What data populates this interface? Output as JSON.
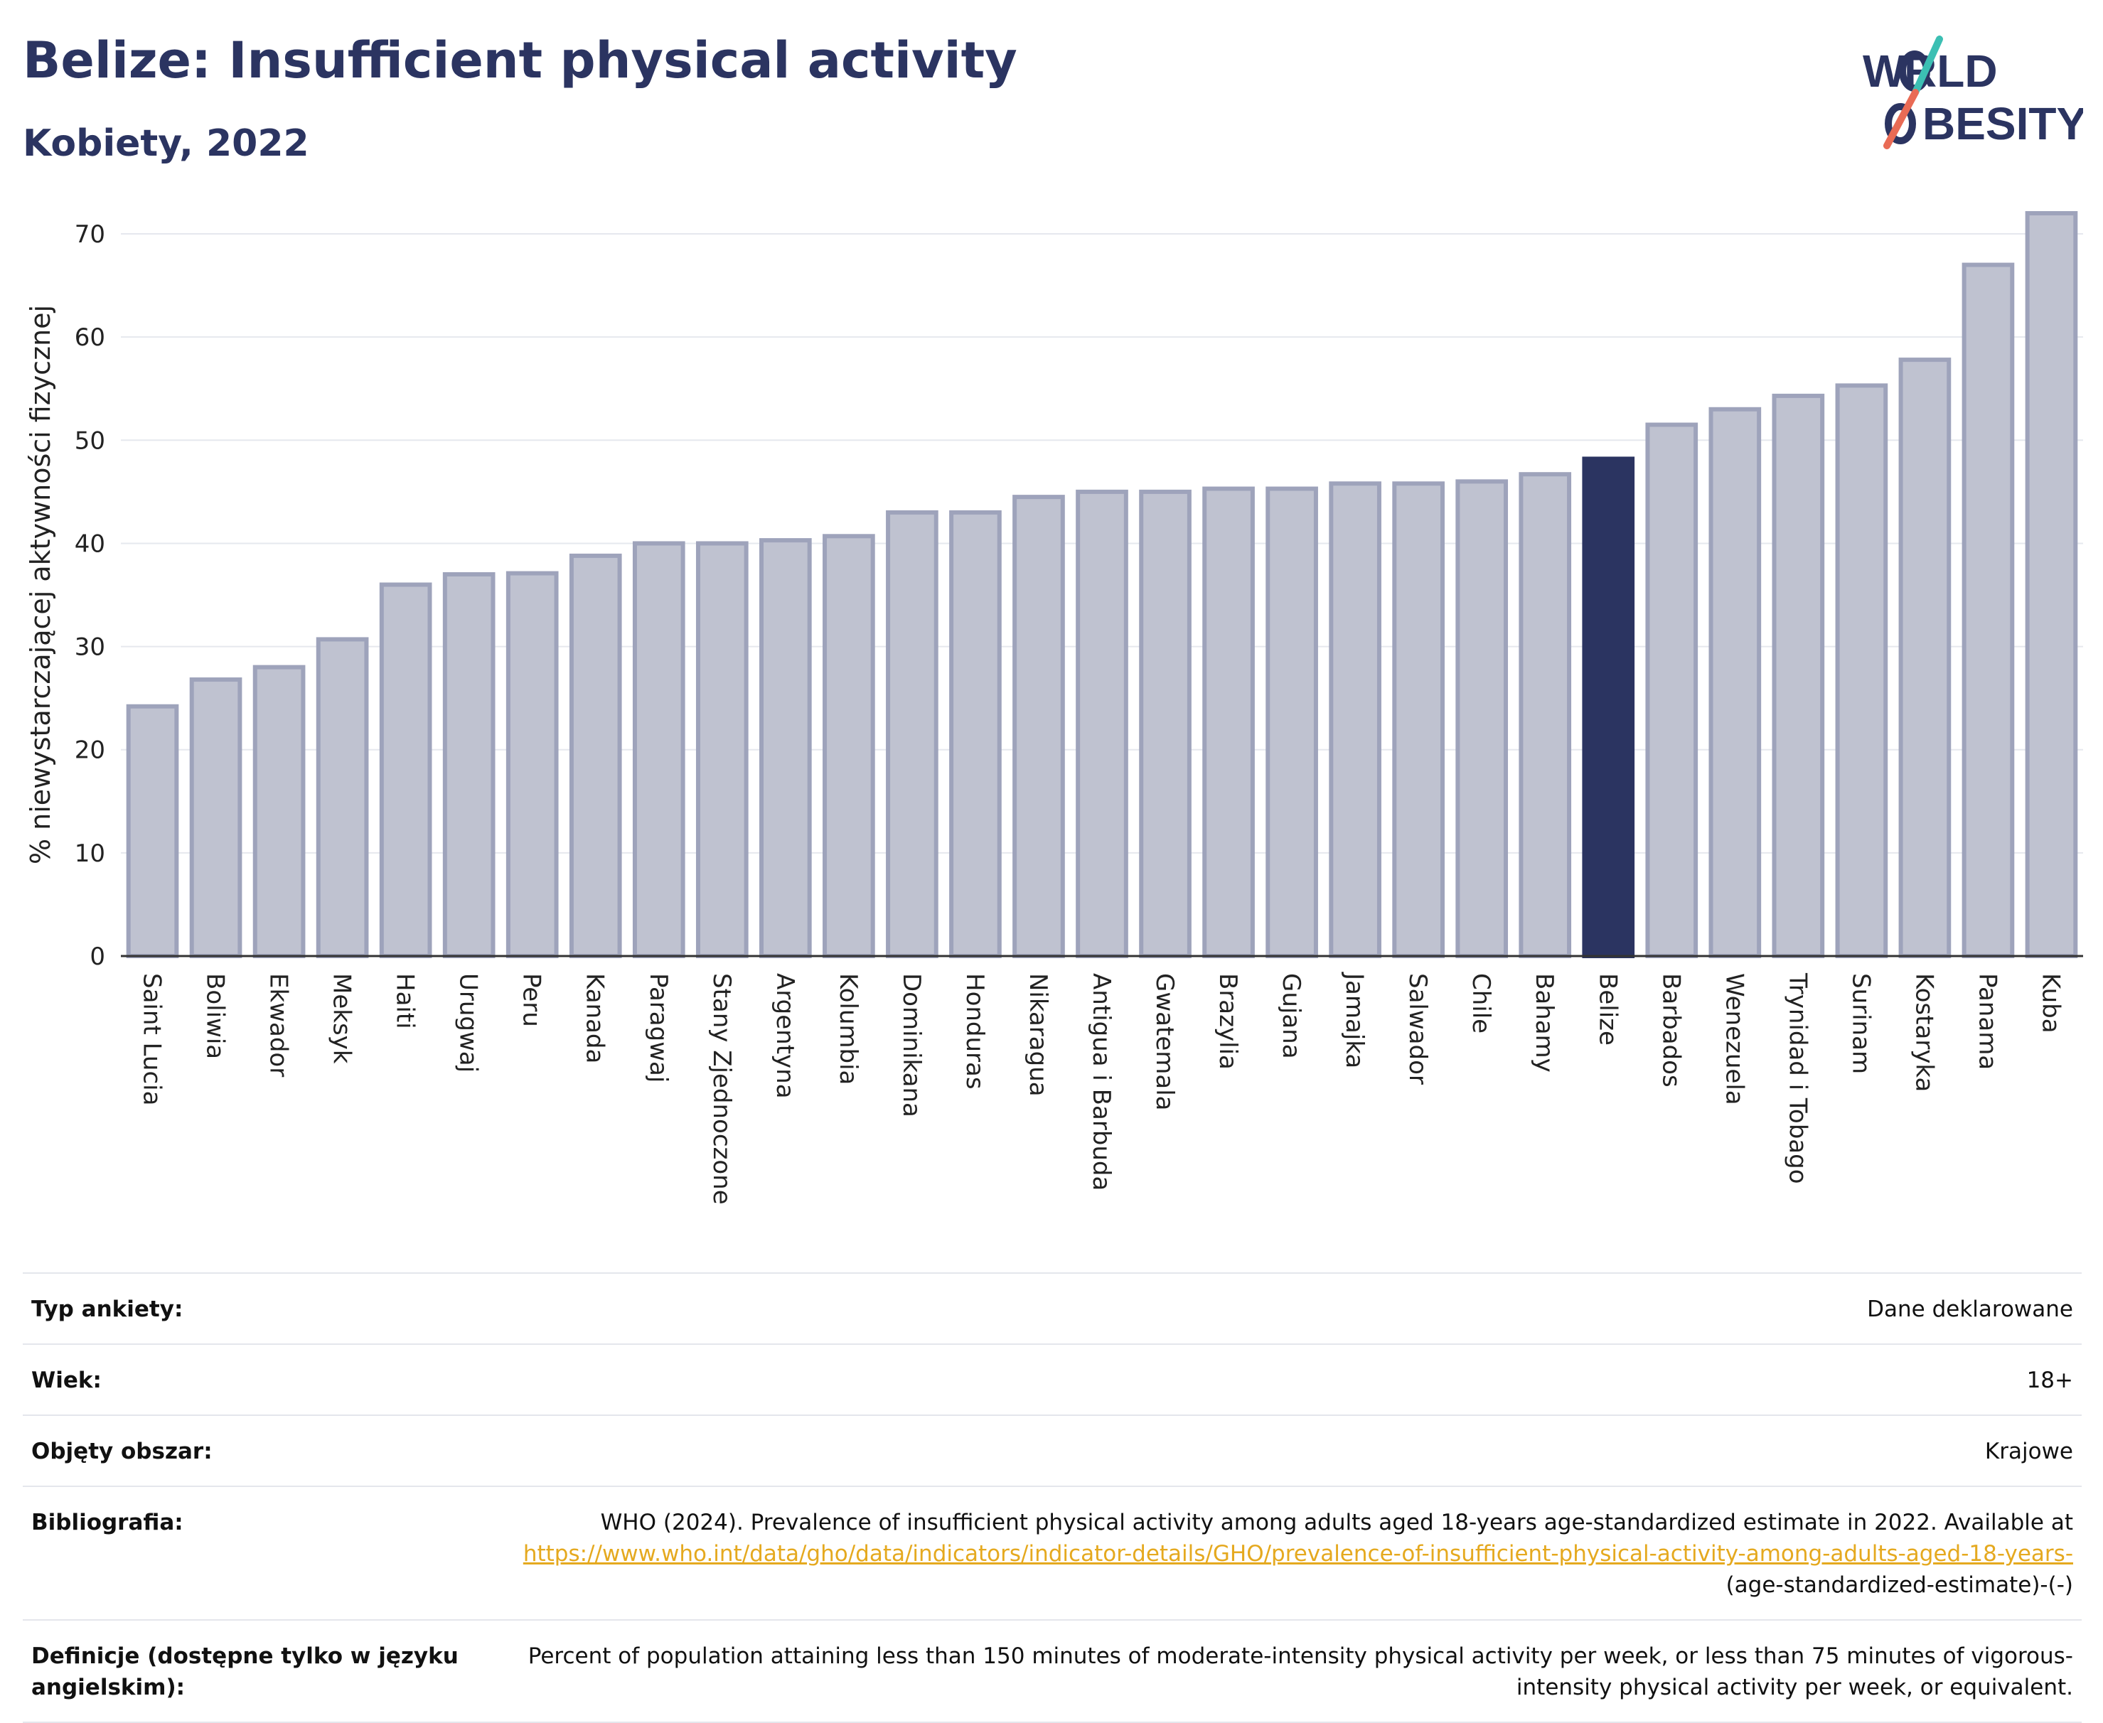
{
  "header": {
    "title": "Belize: Insufficient physical activity",
    "subtitle": "Kobiety, 2022"
  },
  "logo": {
    "line1": "W",
    "line1b": "RLD",
    "line2": "BESITY",
    "accent_teal": "#3cbfb3",
    "accent_coral": "#e96b55"
  },
  "colors": {
    "bar": "#bfc2d0",
    "bar_border": "#9ea3bb",
    "highlight": "#2b3461",
    "grid": "#e6e8ee",
    "axis": "#333333"
  },
  "chart_data": {
    "type": "bar",
    "ylabel": "% niewystarczającej aktywności fizycznej",
    "ylim": [
      0,
      72
    ],
    "yticks": [
      0,
      10,
      20,
      30,
      40,
      50,
      60,
      70
    ],
    "highlight": "Belize",
    "categories": [
      "Saint Lucia",
      "Boliwia",
      "Ekwador",
      "Meksyk",
      "Haiti",
      "Urugwaj",
      "Peru",
      "Kanada",
      "Paragwaj",
      "Stany Zjednoczone",
      "Argentyna",
      "Kolumbia",
      "Dominikana",
      "Honduras",
      "Nikaragua",
      "Antigua i Barbuda",
      "Gwatemala",
      "Brazylia",
      "Gujana",
      "Jamajka",
      "Salwador",
      "Chile",
      "Bahamy",
      "Belize",
      "Barbados",
      "Wenezuela",
      "Trynidad i Tobago",
      "Surinam",
      "Kostaryka",
      "Panama",
      "Kuba"
    ],
    "values": [
      24.2,
      26.8,
      28.0,
      30.7,
      36.0,
      37.0,
      37.1,
      38.8,
      40.0,
      40.0,
      40.3,
      40.7,
      43.0,
      43.0,
      44.5,
      45.0,
      45.0,
      45.3,
      45.3,
      45.8,
      45.8,
      46.0,
      46.7,
      48.2,
      51.5,
      53.0,
      54.3,
      55.3,
      57.8,
      67.0,
      72.0
    ]
  },
  "meta": {
    "survey_type": {
      "label": "Typ ankiety:",
      "value": "Dane deklarowane"
    },
    "age": {
      "label": "Wiek:",
      "value": "18+"
    },
    "coverage": {
      "label": "Objęty obszar:",
      "value": "Krajowe"
    },
    "bibliography": {
      "label": "Bibliografia:",
      "text": "WHO (2024). Prevalence of insufficient physical activity among adults aged 18-years age-standardized estimate in 2022. Available at",
      "link": "https://www.who.int/data/gho/data/indicators/indicator-details/GHO/prevalence-of-insufficient-physical-activity-among-adults-aged-18-years-",
      "suffix": "(age-standardized-estimate)-(-)"
    },
    "definitions": {
      "label": "Definicje (dostępne tylko w języku angielskim):",
      "value": "Percent of population attaining less than 150 minutes of moderate-intensity physical activity per week, or less than 75 minutes of vigorous-intensity physical activity per week, or equivalent."
    }
  }
}
